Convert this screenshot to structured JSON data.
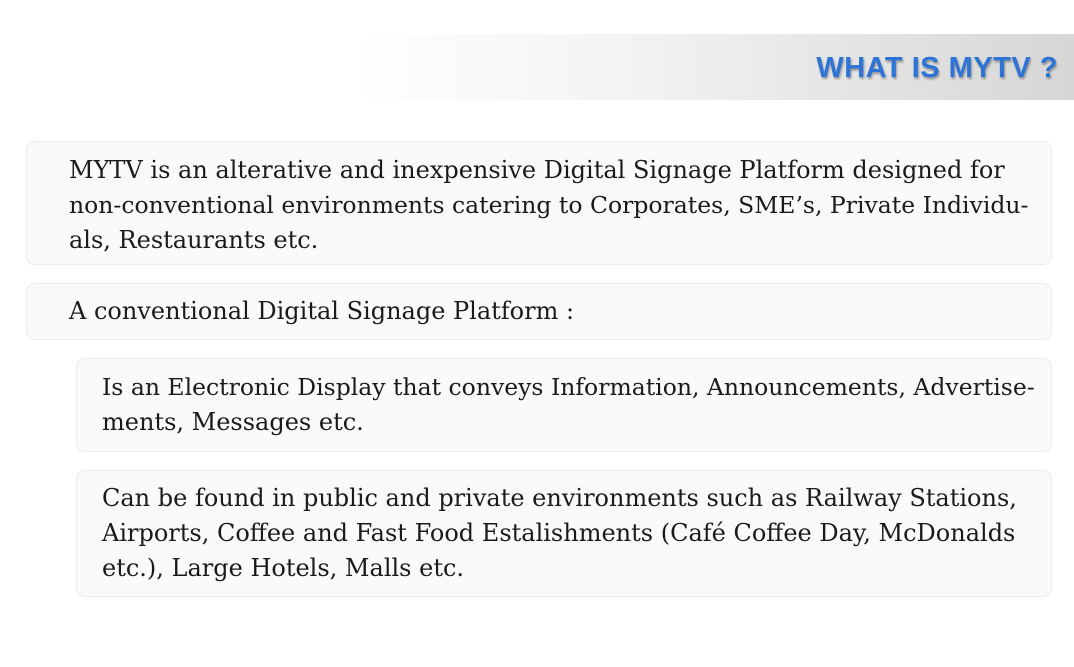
{
  "title": "WHAT IS MYTV ?",
  "blocks": [
    {
      "lines": [
        "MYTV is an alterative and inexpensive Digital Signage Platform designed for",
        "non-conventional environments catering to Corporates, SME’s, Private Individu-",
        "als, Restaurants etc."
      ]
    },
    {
      "lines": [
        "A conventional Digital Signage Platform :"
      ]
    },
    {
      "lines": [
        "Is an Electronic Display that conveys Information, Announcements, Advertise-",
        "ments,  Messages etc."
      ]
    },
    {
      "lines": [
        "Can be found in public and private environments such as Railway Stations,",
        "Airports, Coffee and Fast Food Estalishments (Café Coffee Day, McDonalds",
        "etc.), Large Hotels, Malls etc."
      ]
    }
  ]
}
